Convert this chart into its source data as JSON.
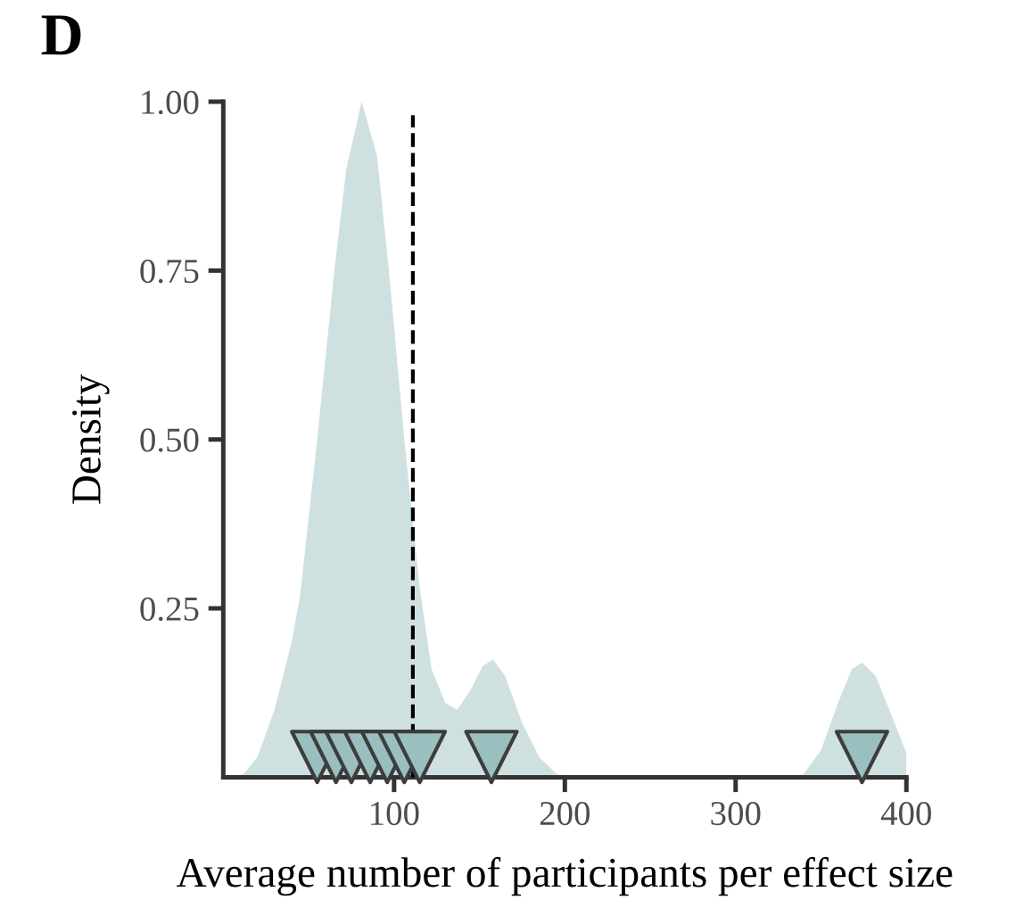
{
  "chart_data": {
    "type": "area",
    "title": "D",
    "xlabel": "Average number of participants per effect size",
    "ylabel": "Density",
    "xlim": [
      0,
      400
    ],
    "xticks": [
      100,
      200,
      300,
      400
    ],
    "ylim": [
      0,
      1.0
    ],
    "yticks": [
      {
        "value": 0.25,
        "label": "0.25"
      },
      {
        "value": 0.5,
        "label": "0.50"
      },
      {
        "value": 0.75,
        "label": "0.75"
      },
      {
        "value": 1.0,
        "label": "1.00"
      }
    ],
    "grid": false,
    "legend": false,
    "series": [
      {
        "color": "#cfe0e0",
        "x": [
          5,
          12,
          20,
          30,
          40,
          45,
          55,
          65,
          72,
          81,
          90,
          97,
          106,
          115,
          122,
          130,
          137,
          145,
          152,
          158,
          165,
          175,
          185,
          195,
          205,
          330,
          340,
          350,
          360,
          368,
          374,
          382,
          390,
          400
        ],
        "values": [
          0,
          0.005,
          0.03,
          0.1,
          0.2,
          0.27,
          0.5,
          0.75,
          0.9,
          1.0,
          0.92,
          0.75,
          0.5,
          0.28,
          0.16,
          0.11,
          0.1,
          0.13,
          0.165,
          0.174,
          0.15,
          0.08,
          0.03,
          0.005,
          0,
          0,
          0.005,
          0.04,
          0.11,
          0.16,
          0.17,
          0.15,
          0.1,
          0.036
        ]
      },
      {
        "type": "scatter",
        "color": "#9bbfbf",
        "marker": "triangle",
        "x": [
          55,
          66,
          75,
          86,
          96,
          106,
          115,
          157,
          374
        ],
        "values": [
          0.03,
          0.03,
          0.03,
          0.03,
          0.03,
          0.03,
          0.03,
          0.03,
          0.03
        ]
      }
    ],
    "ref_lines": [
      {
        "axis": "x",
        "value": 111,
        "line_style": "dashed",
        "color": "#000000"
      }
    ]
  }
}
